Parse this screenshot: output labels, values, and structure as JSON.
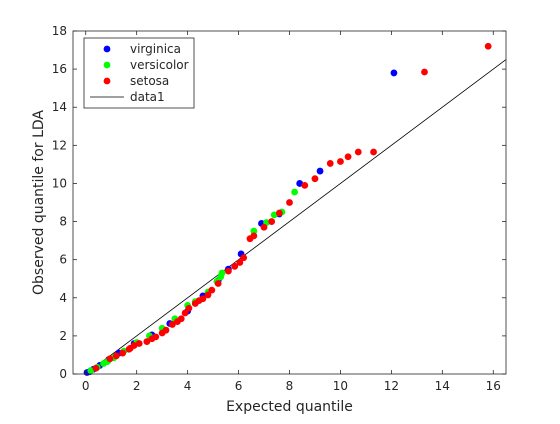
{
  "chart_data": {
    "type": "scatter",
    "xlabel": "Expected quantile",
    "ylabel": "Observed quantile for LDA",
    "xlim": [
      -0.5,
      16.5
    ],
    "ylim": [
      0,
      18
    ],
    "xticks": [
      0,
      2,
      4,
      6,
      8,
      10,
      12,
      14,
      16
    ],
    "yticks": [
      0,
      2,
      4,
      6,
      8,
      10,
      12,
      14,
      16,
      18
    ],
    "grid": false,
    "legend_position": "top-left",
    "series": [
      {
        "name": "virginica",
        "color": "#0000ff",
        "marker": "circle",
        "points": [
          [
            0.05,
            0.08
          ],
          [
            0.15,
            0.12
          ],
          [
            0.3,
            0.25
          ],
          [
            0.55,
            0.45
          ],
          [
            0.9,
            0.75
          ],
          [
            1.3,
            1.1
          ],
          [
            1.9,
            1.6
          ],
          [
            2.6,
            2.05
          ],
          [
            3.3,
            2.65
          ],
          [
            4.0,
            3.3
          ],
          [
            4.6,
            4.1
          ],
          [
            5.2,
            4.9
          ],
          [
            5.6,
            5.5
          ],
          [
            6.1,
            6.3
          ],
          [
            6.9,
            7.9
          ],
          [
            7.6,
            8.4
          ],
          [
            8.4,
            10.0
          ],
          [
            9.2,
            10.65
          ],
          [
            12.1,
            15.8
          ]
        ]
      },
      {
        "name": "versicolor",
        "color": "#00ff00",
        "marker": "circle",
        "points": [
          [
            0.2,
            0.18
          ],
          [
            0.45,
            0.35
          ],
          [
            0.7,
            0.55
          ],
          [
            0.85,
            0.65
          ],
          [
            1.1,
            0.85
          ],
          [
            1.5,
            1.2
          ],
          [
            2.0,
            1.65
          ],
          [
            2.5,
            2.0
          ],
          [
            3.0,
            2.4
          ],
          [
            3.5,
            2.9
          ],
          [
            4.0,
            3.6
          ],
          [
            4.3,
            3.8
          ],
          [
            4.8,
            4.3
          ],
          [
            5.15,
            4.85
          ],
          [
            5.3,
            5.1
          ],
          [
            5.35,
            5.3
          ],
          [
            6.6,
            7.5
          ],
          [
            7.1,
            7.95
          ],
          [
            7.4,
            8.35
          ],
          [
            7.7,
            8.5
          ],
          [
            8.2,
            9.55
          ]
        ]
      },
      {
        "name": "setosa",
        "color": "#ff0000",
        "marker": "circle",
        "points": [
          [
            0.4,
            0.3
          ],
          [
            0.95,
            0.8
          ],
          [
            1.2,
            0.95
          ],
          [
            1.45,
            1.1
          ],
          [
            1.7,
            1.3
          ],
          [
            1.75,
            1.35
          ],
          [
            1.9,
            1.5
          ],
          [
            2.1,
            1.6
          ],
          [
            2.4,
            1.7
          ],
          [
            2.6,
            1.85
          ],
          [
            2.75,
            1.95
          ],
          [
            3.0,
            2.15
          ],
          [
            3.15,
            2.3
          ],
          [
            3.4,
            2.6
          ],
          [
            3.6,
            2.75
          ],
          [
            3.75,
            2.9
          ],
          [
            3.9,
            3.2
          ],
          [
            4.05,
            3.45
          ],
          [
            4.3,
            3.7
          ],
          [
            4.45,
            3.85
          ],
          [
            4.6,
            3.95
          ],
          [
            4.8,
            4.15
          ],
          [
            4.95,
            4.4
          ],
          [
            5.2,
            4.75
          ],
          [
            5.6,
            5.4
          ],
          [
            5.85,
            5.65
          ],
          [
            6.05,
            5.85
          ],
          [
            6.2,
            6.1
          ],
          [
            6.45,
            7.1
          ],
          [
            6.6,
            7.25
          ],
          [
            7.0,
            7.7
          ],
          [
            7.3,
            8.0
          ],
          [
            7.6,
            8.45
          ],
          [
            8.0,
            9.0
          ],
          [
            8.6,
            9.9
          ],
          [
            9.0,
            10.25
          ],
          [
            9.6,
            11.05
          ],
          [
            10.0,
            11.15
          ],
          [
            10.3,
            11.4
          ],
          [
            10.7,
            11.65
          ],
          [
            11.3,
            11.65
          ],
          [
            13.3,
            15.85
          ],
          [
            15.8,
            17.2
          ]
        ]
      },
      {
        "name": "data1",
        "color": "#000000",
        "style": "line",
        "points": [
          [
            0,
            0
          ],
          [
            16.5,
            16.5
          ]
        ]
      }
    ]
  }
}
